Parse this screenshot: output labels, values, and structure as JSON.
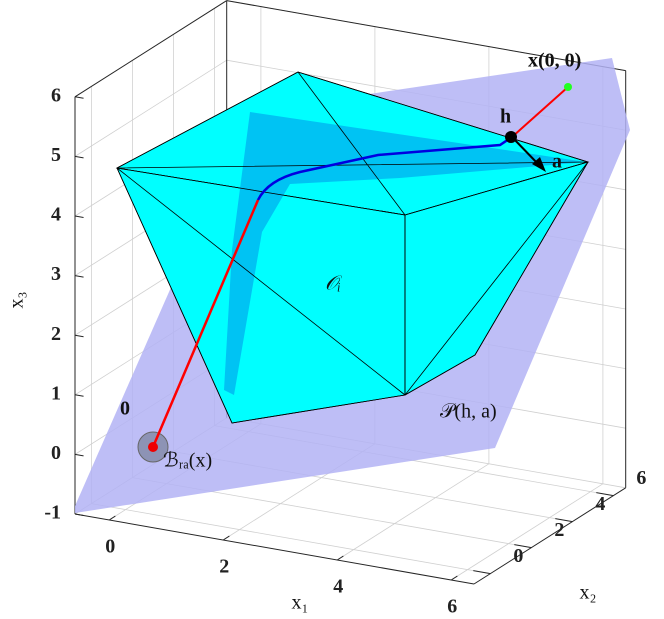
{
  "chart_data": {
    "type": "polyhedron3d",
    "xlabel": "x₁",
    "ylabel": "x₂",
    "zlabel": "x₃",
    "xlim": [
      -0.6,
      6.4
    ],
    "ylim": [
      -0.8,
      6.6
    ],
    "zlim": [
      -1,
      6
    ],
    "xticks": [
      0,
      2,
      4,
      6
    ],
    "yticks": [
      0,
      2,
      4,
      6
    ],
    "zticks": [
      -1,
      0,
      1,
      2,
      3,
      4,
      5,
      6
    ],
    "grid": true,
    "annotations": [
      "x(0, 0)",
      "h",
      "a",
      "0",
      "𝒪ᵢ",
      "𝒫(h, a)",
      "ℬᵣₐ(x)"
    ]
  }
}
